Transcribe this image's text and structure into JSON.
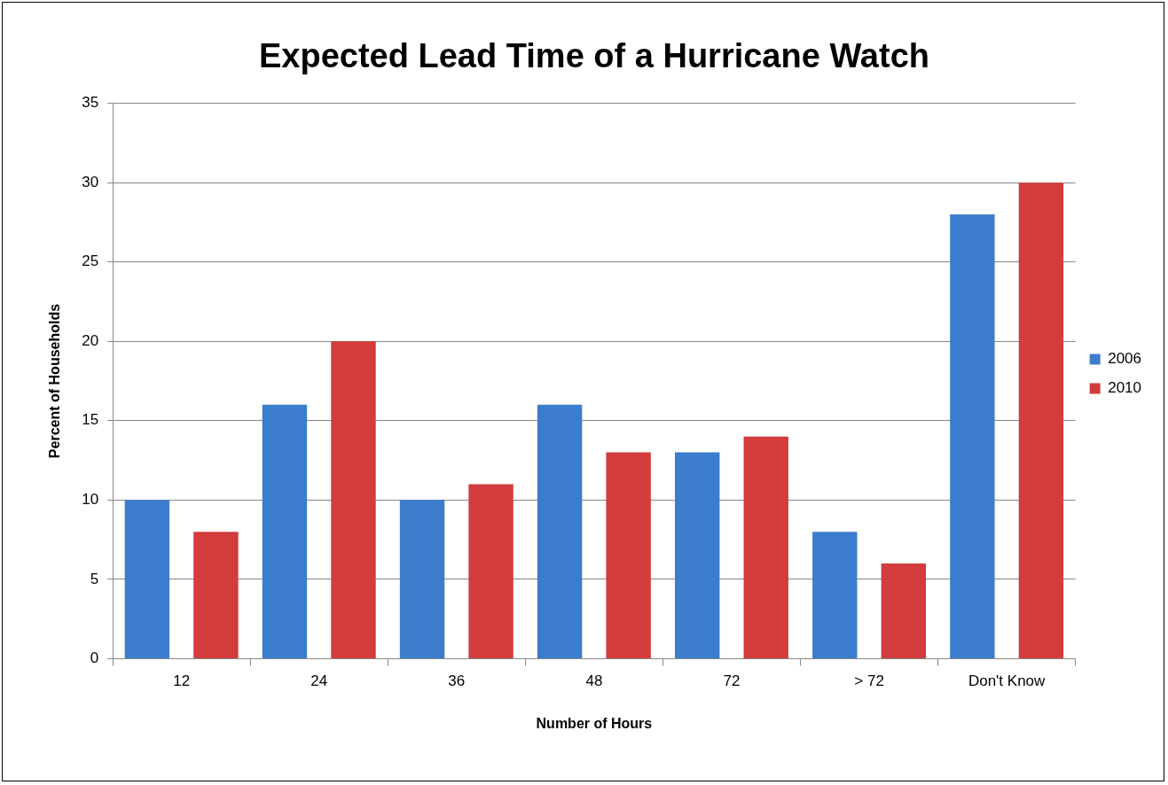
{
  "chart_data": {
    "type": "bar",
    "title": "Expected Lead Time of a Hurricane Watch",
    "xlabel": "Number of Hours",
    "ylabel": "Percent of Households",
    "categories": [
      "12",
      "24",
      "36",
      "48",
      "72",
      "> 72",
      "Don't Know"
    ],
    "series": [
      {
        "name": "2006",
        "color": "#3c7ccc",
        "values": [
          10,
          16,
          10,
          16,
          13,
          8,
          28
        ]
      },
      {
        "name": "2010",
        "color": "#d23c3c",
        "values": [
          8,
          20,
          11,
          13,
          14,
          6,
          30
        ]
      }
    ],
    "ylim": [
      0,
      35
    ],
    "yticks": [
      0,
      5,
      10,
      15,
      20,
      25,
      30,
      35
    ],
    "grid": "y",
    "legend": "right"
  }
}
